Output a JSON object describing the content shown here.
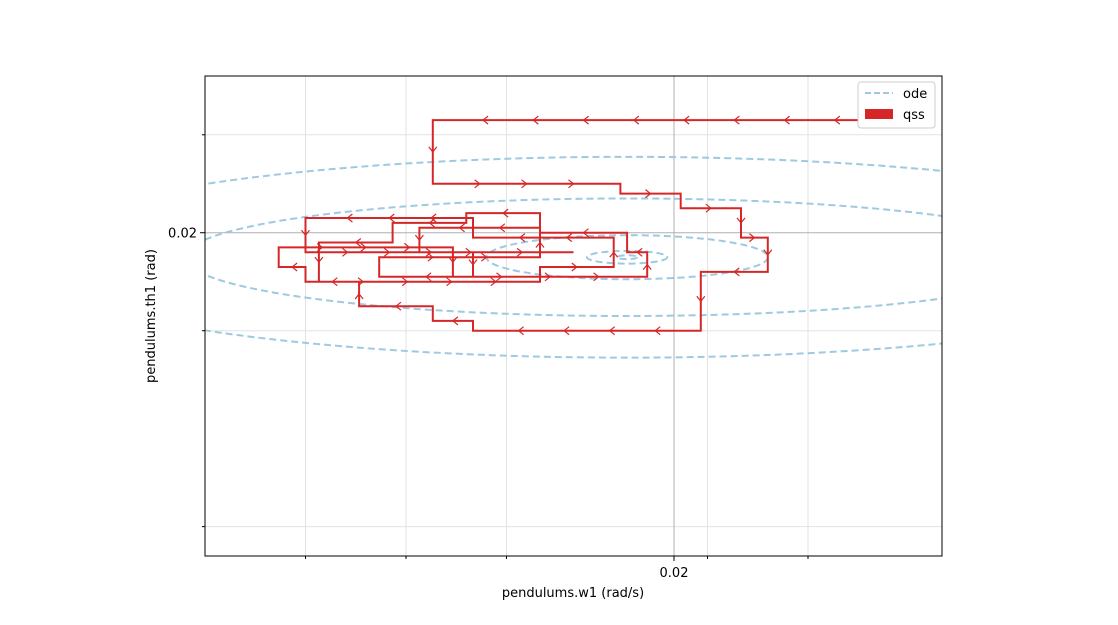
{
  "chart_data": {
    "type": "line",
    "title": "",
    "xlabel": "pendulums.w1 (rad/s)",
    "ylabel": "pendulums.th1 (rad)",
    "x_ticks": [
      {
        "value": 0.02,
        "label": "0.02",
        "major": true
      }
    ],
    "y_ticks": [
      {
        "value": 0.02,
        "label": "0.02",
        "major": true
      }
    ],
    "grid": true,
    "legend_position": "upper right",
    "colors": {
      "ode": "#9ecae1",
      "qss": "#d62728"
    },
    "series": [
      {
        "name": "ode",
        "style": "dashed",
        "spiral": {
          "center": [
            0.0193,
            0.0195
          ],
          "radii": [
            [
              0.0092,
              0.00205
            ],
            [
              0.0066,
              0.0012
            ],
            [
              0.0021,
              0.00045
            ],
            [
              0.0006,
              0.00013
            ],
            [
              0.00015,
              4e-05
            ]
          ]
        }
      },
      {
        "name": "qss",
        "style": "step-line",
        "points": [
          [
            0.0239,
            0.0223
          ],
          [
            0.0164,
            0.0223
          ],
          [
            0.0164,
            0.021
          ],
          [
            0.0192,
            0.021
          ],
          [
            0.0192,
            0.0208
          ],
          [
            0.0201,
            0.0208
          ],
          [
            0.0201,
            0.0205
          ],
          [
            0.021,
            0.0205
          ],
          [
            0.021,
            0.0199
          ],
          [
            0.0214,
            0.0199
          ],
          [
            0.0214,
            0.0192
          ],
          [
            0.0204,
            0.0192
          ],
          [
            0.0204,
            0.018
          ],
          [
            0.017,
            0.018
          ],
          [
            0.017,
            0.0182
          ],
          [
            0.0164,
            0.0182
          ],
          [
            0.0164,
            0.0185
          ],
          [
            0.0153,
            0.0185
          ],
          [
            0.0153,
            0.019
          ],
          [
            0.0145,
            0.019
          ],
          [
            0.0145,
            0.0193
          ],
          [
            0.0141,
            0.0193
          ],
          [
            0.0141,
            0.0197
          ],
          [
            0.0167,
            0.0197
          ],
          [
            0.0167,
            0.0191
          ],
          [
            0.0196,
            0.0191
          ],
          [
            0.0196,
            0.0196
          ],
          [
            0.0193,
            0.0196
          ],
          [
            0.0193,
            0.02
          ],
          [
            0.018,
            0.02
          ],
          [
            0.018,
            0.0204
          ],
          [
            0.0169,
            0.0204
          ],
          [
            0.0169,
            0.0202
          ],
          [
            0.0158,
            0.0202
          ],
          [
            0.0158,
            0.0198
          ],
          [
            0.0147,
            0.0198
          ],
          [
            0.0147,
            0.019
          ],
          [
            0.018,
            0.019
          ],
          [
            0.018,
            0.0193
          ],
          [
            0.0191,
            0.0193
          ],
          [
            0.0191,
            0.0199
          ],
          [
            0.017,
            0.0199
          ],
          [
            0.017,
            0.0203
          ],
          [
            0.0145,
            0.0203
          ],
          [
            0.0145,
            0.0196
          ],
          [
            0.017,
            0.0196
          ],
          [
            0.017,
            0.0191
          ],
          [
            0.0156,
            0.0191
          ],
          [
            0.0156,
            0.0195
          ],
          [
            0.018,
            0.0195
          ],
          [
            0.018,
            0.0201
          ],
          [
            0.0162,
            0.0201
          ],
          [
            0.0162,
            0.0196
          ],
          [
            0.0185,
            0.0196
          ]
        ]
      }
    ]
  }
}
